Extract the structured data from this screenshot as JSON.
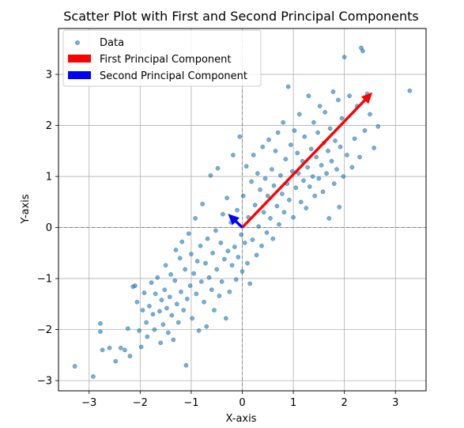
{
  "chart_data": {
    "type": "scatter",
    "title": "Scatter Plot with First and Second Principal Components",
    "xlabel": "X-axis",
    "ylabel": "Y-axis",
    "xlim": [
      -3.6,
      3.6
    ],
    "ylim": [
      -3.2,
      3.9
    ],
    "x_ticks": [
      -3,
      -2,
      -1,
      0,
      1,
      2,
      3
    ],
    "y_ticks": [
      -3,
      -2,
      -1,
      0,
      1,
      2,
      3
    ],
    "x_tick_labels": [
      "−3",
      "−2",
      "−1",
      "0",
      "1",
      "2",
      "3"
    ],
    "y_tick_labels": [
      "−3",
      "−2",
      "−1",
      "0",
      "1",
      "2",
      "3"
    ],
    "grid": true,
    "reference_lines": {
      "x": 0,
      "y": 0,
      "style": "dashed"
    },
    "legend": {
      "placement": "top-left",
      "entries": [
        "Data",
        "First Principal Component",
        "Second Principal Component"
      ]
    },
    "series": [
      {
        "name": "Data",
        "color": "#1f77b4",
        "points": [
          [
            -3.28,
            -2.72
          ],
          [
            -2.92,
            -2.92
          ],
          [
            -2.78,
            -1.88
          ],
          [
            -2.78,
            -2.04
          ],
          [
            -2.74,
            -2.4
          ],
          [
            -2.6,
            -2.36
          ],
          [
            -2.48,
            -2.62
          ],
          [
            -2.38,
            -2.36
          ],
          [
            -2.3,
            -2.4
          ],
          [
            -2.24,
            -1.98
          ],
          [
            -2.2,
            -2.52
          ],
          [
            -2.14,
            -1.16
          ],
          [
            -2.1,
            -1.14
          ],
          [
            -2.06,
            -1.46
          ],
          [
            -2.02,
            -2.02
          ],
          [
            -1.98,
            -2.34
          ],
          [
            -1.95,
            -1.62
          ],
          [
            -1.92,
            -1.28
          ],
          [
            -1.88,
            -1.86
          ],
          [
            -1.86,
            -2.14
          ],
          [
            -1.82,
            -1.54
          ],
          [
            -1.78,
            -1.08
          ],
          [
            -1.75,
            -1.7
          ],
          [
            -1.72,
            -2.0
          ],
          [
            -1.7,
            -1.3
          ],
          [
            -1.66,
            -0.98
          ],
          [
            -1.62,
            -1.64
          ],
          [
            -1.6,
            -2.26
          ],
          [
            -1.58,
            -1.42
          ],
          [
            -1.55,
            -1.9
          ],
          [
            -1.52,
            -1.22
          ],
          [
            -1.5,
            -0.74
          ],
          [
            -1.48,
            -1.58
          ],
          [
            -1.45,
            -2.06
          ],
          [
            -1.42,
            -1.36
          ],
          [
            -1.4,
            -0.92
          ],
          [
            -1.38,
            -1.72
          ],
          [
            -1.35,
            -2.2
          ],
          [
            -1.32,
            -1.04
          ],
          [
            -1.3,
            -0.44
          ],
          [
            -1.28,
            -1.5
          ],
          [
            -1.25,
            -1.86
          ],
          [
            -1.22,
            -0.6
          ],
          [
            -1.2,
            -1.26
          ],
          [
            -1.18,
            -0.28
          ],
          [
            -1.15,
            -1.62
          ],
          [
            -1.12,
            -0.82
          ],
          [
            -1.1,
            -2.7
          ],
          [
            -1.08,
            -1.4
          ],
          [
            -1.05,
            -0.12
          ],
          [
            -1.02,
            -1.14
          ],
          [
            -1.0,
            -0.52
          ],
          [
            -0.98,
            -1.78
          ],
          [
            -0.95,
            -0.9
          ],
          [
            -0.92,
            0.18
          ],
          [
            -0.9,
            -1.3
          ],
          [
            -0.88,
            -0.66
          ],
          [
            -0.85,
            -2.02
          ],
          [
            -0.82,
            -0.36
          ],
          [
            -0.8,
            -1.06
          ],
          [
            -0.78,
            0.46
          ],
          [
            -0.75,
            -1.46
          ],
          [
            -0.72,
            -0.7
          ],
          [
            -0.7,
            -1.94
          ],
          [
            -0.68,
            -0.22
          ],
          [
            -0.65,
            -0.98
          ],
          [
            -0.62,
            1.02
          ],
          [
            -0.6,
            -1.22
          ],
          [
            -0.58,
            -0.5
          ],
          [
            -0.55,
            -1.62
          ],
          [
            -0.52,
            -0.06
          ],
          [
            -0.5,
            -0.82
          ],
          [
            -0.48,
            1.16
          ],
          [
            -0.45,
            -1.34
          ],
          [
            -0.42,
            -0.3
          ],
          [
            -0.4,
            -1.06
          ],
          [
            -0.38,
            0.26
          ],
          [
            -0.35,
            -0.62
          ],
          [
            -0.32,
            -1.78
          ],
          [
            -0.3,
            0.58
          ],
          [
            -0.28,
            -0.46
          ],
          [
            -0.25,
            -1.26
          ],
          [
            -0.22,
            0.1
          ],
          [
            -0.2,
            -0.74
          ],
          [
            -0.18,
            1.42
          ],
          [
            -0.15,
            -0.38
          ],
          [
            -0.12,
            -1.02
          ],
          [
            -0.1,
            0.34
          ],
          [
            -0.08,
            -0.58
          ],
          [
            -0.05,
            1.78
          ],
          [
            -0.02,
            -0.14
          ],
          [
            0.0,
            -0.86
          ],
          [
            0.02,
            0.62
          ],
          [
            0.05,
            -0.3
          ],
          [
            0.08,
            1.2
          ],
          [
            0.1,
            -0.7
          ],
          [
            0.12,
            0.2
          ],
          [
            0.15,
            -1.1
          ],
          [
            0.18,
            0.9
          ],
          [
            0.2,
            -0.24
          ],
          [
            0.22,
            1.42
          ],
          [
            0.25,
            0.44
          ],
          [
            0.28,
            -0.54
          ],
          [
            0.3,
            1.06
          ],
          [
            0.32,
            0.02
          ],
          [
            0.35,
            0.74
          ],
          [
            0.38,
            -0.36
          ],
          [
            0.4,
            1.58
          ],
          [
            0.42,
            0.3
          ],
          [
            0.45,
            0.96
          ],
          [
            0.48,
            -0.1
          ],
          [
            0.5,
            0.62
          ],
          [
            0.52,
            1.72
          ],
          [
            0.55,
            0.18
          ],
          [
            0.58,
            1.14
          ],
          [
            0.6,
            -0.22
          ],
          [
            0.62,
            0.82
          ],
          [
            0.65,
            1.5
          ],
          [
            0.68,
            0.42
          ],
          [
            0.7,
            1.86
          ],
          [
            0.72,
            0.06
          ],
          [
            0.75,
            1.02
          ],
          [
            0.78,
            0.66
          ],
          [
            0.8,
            2.06
          ],
          [
            0.82,
            0.3
          ],
          [
            0.85,
            1.34
          ],
          [
            0.88,
            0.86
          ],
          [
            0.9,
            2.76
          ],
          [
            0.92,
            0.54
          ],
          [
            0.95,
            1.62
          ],
          [
            0.98,
            1.1
          ],
          [
            1.0,
            0.2
          ],
          [
            1.02,
            1.9
          ],
          [
            1.05,
            0.78
          ],
          [
            1.08,
            1.46
          ],
          [
            1.1,
            1.06
          ],
          [
            1.12,
            2.22
          ],
          [
            1.15,
            0.5
          ],
          [
            1.18,
            1.3
          ],
          [
            1.2,
            0.92
          ],
          [
            1.22,
            1.78
          ],
          [
            1.25,
            0.38
          ],
          [
            1.28,
            1.18
          ],
          [
            1.3,
            2.58
          ],
          [
            1.32,
            0.8
          ],
          [
            1.35,
            1.54
          ],
          [
            1.38,
            1.0
          ],
          [
            1.4,
            2.06
          ],
          [
            1.42,
            0.62
          ],
          [
            1.45,
            1.38
          ],
          [
            1.48,
            1.86
          ],
          [
            1.5,
            0.96
          ],
          [
            1.52,
            2.38
          ],
          [
            1.55,
            1.22
          ],
          [
            1.58,
            0.7
          ],
          [
            1.6,
            1.66
          ],
          [
            1.62,
            2.26
          ],
          [
            1.65,
            1.06
          ],
          [
            1.68,
            1.5
          ],
          [
            1.7,
            0.18
          ],
          [
            1.72,
            1.94
          ],
          [
            1.75,
            1.3
          ],
          [
            1.78,
            2.66
          ],
          [
            1.8,
            0.86
          ],
          [
            1.82,
            1.7
          ],
          [
            1.85,
            1.14
          ],
          [
            1.88,
            2.5
          ],
          [
            1.9,
            0.4
          ],
          [
            1.92,
            1.58
          ],
          [
            1.95,
            2.14
          ],
          [
            1.98,
            1.0
          ],
          [
            2.0,
            3.34
          ],
          [
            2.05,
            1.42
          ],
          [
            2.1,
            2.58
          ],
          [
            2.15,
            1.18
          ],
          [
            2.2,
            1.74
          ],
          [
            2.25,
            2.38
          ],
          [
            2.3,
            1.38
          ],
          [
            2.33,
            3.52
          ],
          [
            2.36,
            3.46
          ],
          [
            2.4,
            1.9
          ],
          [
            2.45,
            2.62
          ],
          [
            2.5,
            2.22
          ],
          [
            2.58,
            1.56
          ],
          [
            2.66,
            1.98
          ],
          [
            3.28,
            2.68
          ]
        ]
      }
    ],
    "vectors": [
      {
        "name": "First Principal Component",
        "color": "#ff0000",
        "from": [
          0,
          0
        ],
        "to": [
          2.55,
          2.65
        ]
      },
      {
        "name": "Second Principal Component",
        "color": "#0000ff",
        "from": [
          0,
          0
        ],
        "to": [
          -0.28,
          0.27
        ]
      }
    ]
  }
}
